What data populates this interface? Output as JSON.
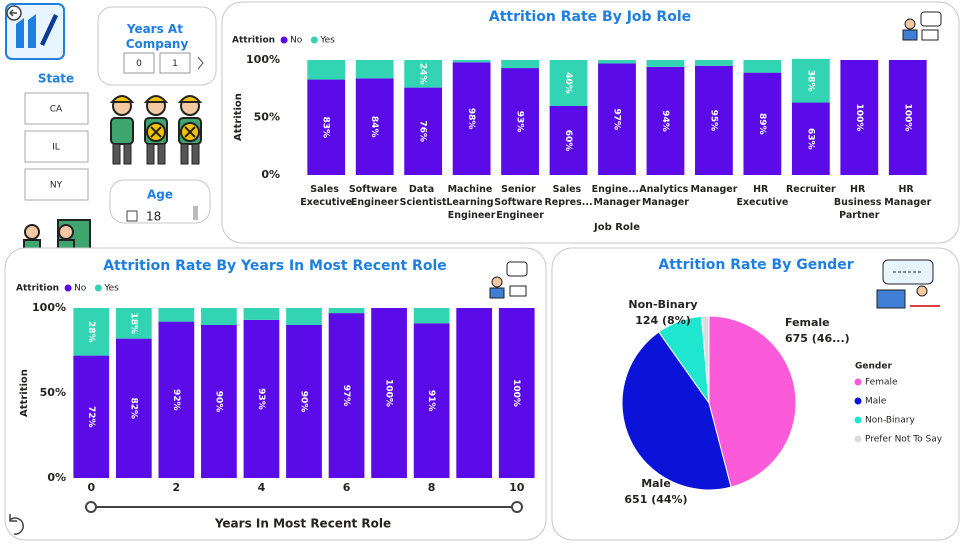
{
  "slicers": {
    "years_at_company": {
      "title": "Years At Company",
      "from": "0",
      "to": "1"
    },
    "state": {
      "title": "State",
      "items": [
        "CA",
        "IL",
        "NY"
      ]
    },
    "age": {
      "title": "Age",
      "items": [
        "18"
      ]
    }
  },
  "chart_data": [
    {
      "type": "bar",
      "stacked": true,
      "title": "Attrition Rate By Job Role",
      "legend_title": "Attrition",
      "x_label": "Job Role",
      "y_label": "Attrition",
      "categories": [
        "Sales Executive",
        "Software Engineer",
        "Data Scientist",
        "Machine Learning Engineer",
        "Senior Software Engineer",
        "Sales Repres...",
        "Engine... Manager",
        "Analytics Manager",
        "Manager",
        "HR Executive",
        "Recruiter",
        "HR Business Partner",
        "HR Manager"
      ],
      "series": [
        {
          "name": "No",
          "color": "#5a0be8",
          "values": [
            83,
            84,
            76,
            98,
            93,
            60,
            97,
            94,
            95,
            89,
            63,
            100,
            100
          ],
          "value_labels": [
            "83%",
            "84%",
            "76%",
            "98%",
            "93%",
            "60%",
            "97%",
            "94%",
            "95%",
            "89%",
            "63%",
            "100%",
            "100%"
          ]
        },
        {
          "name": "Yes",
          "color": "#33d4b4",
          "values": [
            17,
            16,
            24,
            2,
            7,
            40,
            3,
            6,
            5,
            11,
            38,
            0,
            0
          ],
          "value_labels": [
            null,
            null,
            "24%",
            null,
            null,
            "40%",
            null,
            null,
            null,
            null,
            "38%",
            null,
            null
          ]
        }
      ],
      "ylim": [
        0,
        100
      ],
      "yticks": [
        {
          "value": 0,
          "label": "0%"
        },
        {
          "value": 50,
          "label": "50%"
        },
        {
          "value": 100,
          "label": "100%"
        }
      ]
    },
    {
      "type": "bar",
      "stacked": true,
      "title": "Attrition Rate By Years In Most Recent Role",
      "legend_title": "Attrition",
      "x_label": "Years In Most Recent Role",
      "y_label": "Attrition",
      "x": [
        0,
        1,
        2,
        3,
        4,
        5,
        6,
        7,
        8,
        9,
        10
      ],
      "series": [
        {
          "name": "No",
          "color": "#5a0be8",
          "values": [
            72,
            82,
            92,
            90,
            93,
            90,
            97,
            100,
            91,
            100,
            100
          ],
          "value_labels": [
            "72%",
            "82%",
            "92%",
            "90%",
            "93%",
            "90%",
            "97%",
            "100%",
            "91%",
            null,
            "100%"
          ]
        },
        {
          "name": "Yes",
          "color": "#33d4b4",
          "values": [
            28,
            18,
            8,
            10,
            7,
            10,
            3,
            0,
            9,
            0,
            0
          ],
          "value_labels": [
            "28%",
            "18%",
            null,
            null,
            null,
            null,
            null,
            null,
            null,
            null,
            null
          ]
        }
      ],
      "xlim": [
        -0.5,
        10.5
      ],
      "xticks": [
        0,
        2,
        4,
        6,
        8,
        10
      ],
      "ylim": [
        0,
        100
      ],
      "yticks": [
        {
          "value": 0,
          "label": "0%"
        },
        {
          "value": 50,
          "label": "50%"
        },
        {
          "value": 100,
          "label": "100%"
        }
      ]
    },
    {
      "type": "pie",
      "title": "Attrition Rate By Gender",
      "legend_title": "Gender",
      "categories": [
        "Female",
        "Male",
        "Non-Binary",
        "Prefer Not To Say"
      ],
      "values": [
        675,
        651,
        124,
        20
      ],
      "value_labels": [
        "675 (46...)",
        "651 (44%)",
        "124 (8%)",
        null
      ],
      "colors": [
        "#fb5bd8",
        "#0b13d8",
        "#1ee6cf",
        "#dcdcdc"
      ]
    }
  ]
}
